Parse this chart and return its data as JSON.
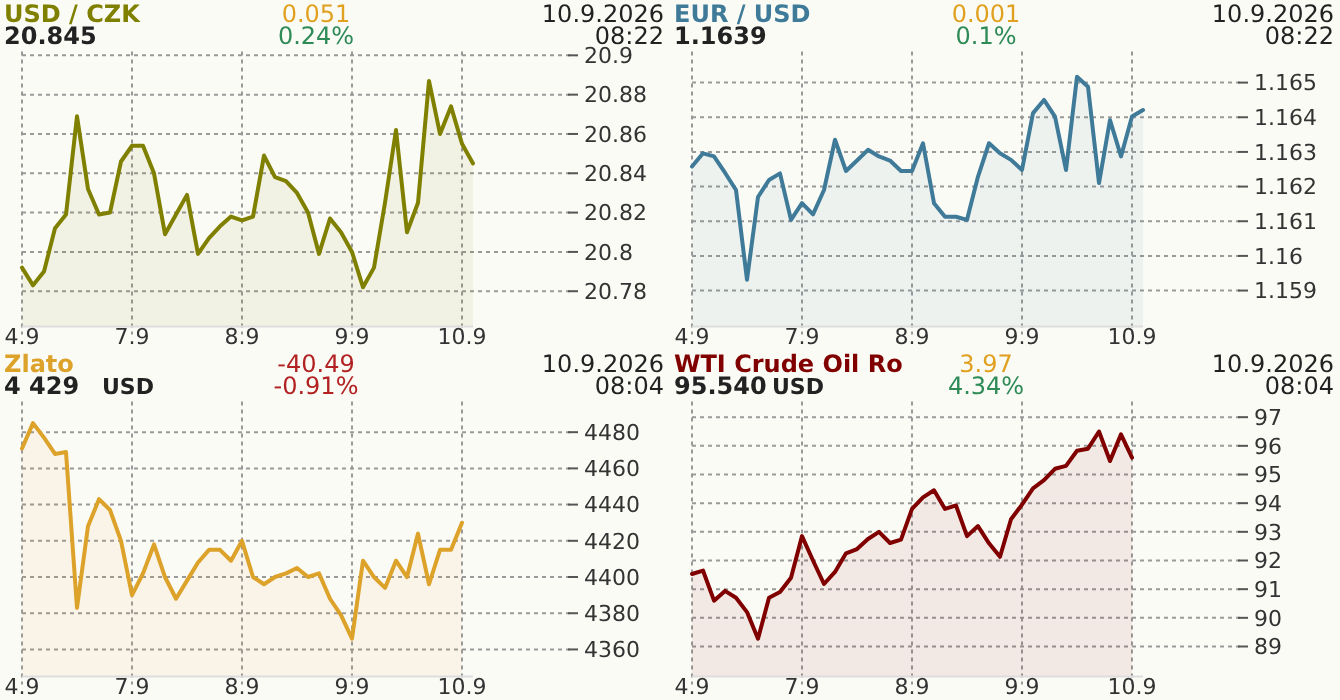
{
  "chart_data": [
    {
      "type": "area",
      "title": "USD / CZK",
      "subtitle": "20.845",
      "annotations": [
        "0.051",
        "0.24%",
        "10.9.2026 08:22"
      ],
      "grid": true,
      "ylim": [
        20.762,
        20.902
      ],
      "categories": [
        "4.9",
        null,
        null,
        null,
        null,
        null,
        null,
        null,
        null,
        null,
        "7.9",
        null,
        null,
        null,
        null,
        null,
        null,
        null,
        null,
        null,
        "8.9",
        null,
        null,
        null,
        null,
        null,
        null,
        null,
        null,
        null,
        "9.9",
        null,
        null,
        null,
        null,
        null,
        null,
        null,
        null,
        null,
        "10.9",
        null
      ],
      "yticks": [
        20.78,
        20.8,
        20.82,
        20.84,
        20.86,
        20.88,
        20.9
      ],
      "series": [
        {
          "color": "#808000",
          "values": [
            20.792,
            20.783,
            20.79,
            20.812,
            20.819,
            20.869,
            20.832,
            20.819,
            20.82,
            20.846,
            20.854,
            20.854,
            20.84,
            20.809,
            20.819,
            20.829,
            20.799,
            20.807,
            20.813,
            20.818,
            20.816,
            20.818,
            20.849,
            20.838,
            20.836,
            20.83,
            20.82,
            20.799,
            20.817,
            20.81,
            20.8,
            20.782,
            20.792,
            20.825,
            20.862,
            20.81,
            20.825,
            20.887,
            20.86,
            20.874,
            20.855,
            20.845
          ]
        }
      ]
    },
    {
      "type": "area",
      "title": "EUR / USD",
      "subtitle": "1.1639",
      "annotations": [
        "0.001",
        "0.1%",
        "10.9.2026 08:22"
      ],
      "grid": true,
      "ylim": [
        1.15796,
        1.1659
      ],
      "categories": [
        "4.9",
        null,
        null,
        null,
        null,
        null,
        null,
        null,
        null,
        null,
        "7.9",
        null,
        null,
        null,
        null,
        null,
        null,
        null,
        null,
        null,
        "8.9",
        null,
        null,
        null,
        null,
        null,
        null,
        null,
        null,
        null,
        "9.9",
        null,
        null,
        null,
        null,
        null,
        null,
        null,
        null,
        null,
        "10.9",
        null
      ],
      "yticks": [
        1.159,
        1.16,
        1.161,
        1.162,
        1.163,
        1.164,
        1.165
      ],
      "series": [
        {
          "color": "#3f7b99",
          "values": [
            1.16258,
            1.16296,
            1.16287,
            1.1624,
            1.1619,
            1.15931,
            1.1617,
            1.16219,
            1.16238,
            1.16104,
            1.16152,
            1.1612,
            1.1619,
            1.16335,
            1.16245,
            1.16275,
            1.16306,
            1.16287,
            1.16275,
            1.16245,
            1.16245,
            1.16325,
            1.16152,
            1.16113,
            1.16113,
            1.16104,
            1.16229,
            1.16325,
            1.16296,
            1.16277,
            1.16248,
            1.16412,
            1.1645,
            1.16402,
            1.16248,
            1.16517,
            1.16488,
            1.1621,
            1.16392,
            1.16287,
            1.16402,
            1.16421
          ]
        }
      ]
    },
    {
      "type": "area",
      "title": "Zlato",
      "subtitle": "4 429",
      "ylabel": "USD",
      "annotations": [
        "-40.49",
        "-0.91%",
        "10.9.2026 08:04"
      ],
      "grid": true,
      "ylim": [
        4345,
        4497
      ],
      "categories": [
        "4.9",
        null,
        null,
        null,
        null,
        null,
        null,
        null,
        null,
        null,
        "7.9",
        null,
        null,
        null,
        null,
        null,
        null,
        null,
        null,
        null,
        "8.9",
        null,
        null,
        null,
        null,
        null,
        null,
        null,
        null,
        null,
        "9.9",
        null,
        null,
        null,
        null,
        null,
        null,
        null,
        null,
        null,
        "10.9",
        null
      ],
      "yticks": [
        4360,
        4380,
        4400,
        4420,
        4440,
        4460,
        4480
      ],
      "series": [
        {
          "color": "#dca22a",
          "values": [
            4471,
            4485,
            4477,
            4468,
            4469,
            4383,
            4428,
            4443,
            4437,
            4420,
            4390,
            4402,
            4418,
            4400,
            4388,
            4398,
            4408,
            4415,
            4415,
            4409,
            4420,
            4400,
            4396,
            4400,
            4402,
            4405,
            4400,
            4402,
            4388,
            4379,
            4366,
            4409,
            4400,
            4394,
            4409,
            4400,
            4424,
            4396,
            4415,
            4415,
            4430,
            null
          ]
        }
      ]
    },
    {
      "type": "area",
      "title": "WTI Crude Oil Ro",
      "subtitle": "95.540",
      "ylabel": "USD",
      "annotations": [
        "3.97",
        "4.34%",
        "10.9.2026 08:04"
      ],
      "grid": true,
      "ylim": [
        87.95,
        97.55
      ],
      "categories": [
        "4.9",
        null,
        null,
        null,
        null,
        null,
        null,
        null,
        null,
        null,
        "7.9",
        null,
        null,
        null,
        null,
        null,
        null,
        null,
        null,
        null,
        "8.9",
        null,
        null,
        null,
        null,
        null,
        null,
        null,
        null,
        null,
        "9.9",
        null,
        null,
        null,
        null,
        null,
        null,
        null,
        null,
        null,
        "10.9",
        null
      ],
      "yticks": [
        89,
        90,
        91,
        92,
        93,
        94,
        95,
        96,
        97
      ],
      "series": [
        {
          "color": "#800000",
          "values": [
            91.53,
            91.65,
            90.6,
            90.94,
            90.7,
            90.2,
            89.27,
            90.7,
            90.9,
            91.4,
            92.85,
            92.0,
            91.18,
            91.6,
            92.25,
            92.4,
            92.75,
            93.0,
            92.61,
            92.73,
            93.8,
            94.2,
            94.45,
            93.8,
            93.92,
            92.85,
            93.2,
            92.6,
            92.13,
            93.44,
            93.95,
            94.52,
            94.8,
            95.2,
            95.3,
            95.83,
            95.9,
            96.5,
            95.47,
            96.4,
            95.59,
            null
          ]
        }
      ]
    }
  ]
}
